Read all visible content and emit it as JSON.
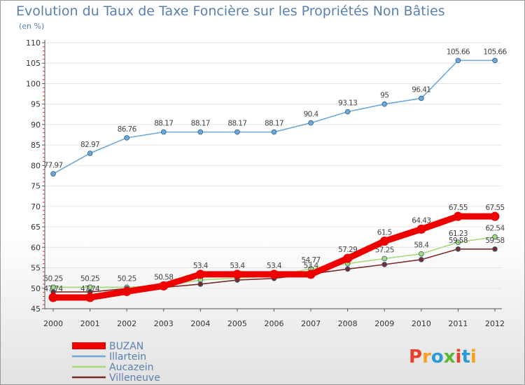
{
  "title": "Evolution du Taux de Taxe Foncière sur les Propriétés Non Bâties",
  "unit": "(en %)",
  "logo": {
    "text": "Proxiti",
    "colors": [
      "#e8402a",
      "#f5a21e",
      "#2b9bd8",
      "#5cb534",
      "#e8402a",
      "#2b9bd8",
      "#f5a21e"
    ]
  },
  "chart_data": {
    "type": "line",
    "title": "Evolution du Taux de Taxe Foncière sur les Propriétés Non Bâties",
    "ylabel": "(en %)",
    "xlabel": "",
    "x": [
      "2000",
      "2001",
      "2002",
      "2003",
      "2004",
      "2005",
      "2006",
      "2007",
      "2008",
      "2009",
      "2010",
      "2011",
      "2012"
    ],
    "ylim": [
      45,
      110
    ],
    "yticks": [
      45,
      50,
      55,
      60,
      65,
      70,
      75,
      80,
      85,
      90,
      95,
      100,
      105,
      110
    ],
    "grid": true,
    "legend": "bottom-left",
    "series": [
      {
        "name": "Illartein",
        "color": "#6fa8d6",
        "values": [
          77.97,
          82.97,
          86.76,
          88.17,
          88.17,
          88.17,
          88.17,
          90.4,
          93.13,
          95,
          96.41,
          105.66,
          105.66
        ],
        "labels": [
          "77.97",
          "82.97",
          "86.76",
          "88.17",
          "88.17",
          "88.17",
          "88.17",
          "90.4",
          "93.13",
          "95",
          "96.41",
          "105.66",
          "105.66"
        ]
      },
      {
        "name": "Aucazein",
        "color": "#a7db7a",
        "values": [
          50.25,
          50.25,
          50.25,
          50.58,
          52,
          52.5,
          53,
          54.77,
          56,
          57.25,
          58.4,
          61.23,
          62.54
        ],
        "labels": [
          "50.25",
          "50.25",
          "50.25",
          "50.58",
          "",
          "",
          "",
          "54.77",
          "",
          "57.25",
          "58.4",
          "61.23",
          "62.54"
        ]
      },
      {
        "name": "Villeneuve",
        "color": "#7b2a2a",
        "values": [
          49.1,
          49.1,
          49.9,
          50.2,
          51,
          52,
          52.4,
          53.5,
          54.7,
          55.8,
          57,
          59.58,
          59.58
        ],
        "labels": [
          "",
          "",
          "",
          "",
          "",
          "",
          "",
          "",
          "",
          "",
          "",
          "59.58",
          "59.58"
        ]
      },
      {
        "name": "BUZAN",
        "color": "#ee0000",
        "values": [
          47.74,
          47.74,
          49.2,
          50.58,
          53.4,
          53.4,
          53.4,
          53.4,
          57.29,
          61.5,
          64.43,
          67.55,
          67.55
        ],
        "labels": [
          "47.74",
          "47.74",
          "",
          "",
          "53.4",
          "53.4",
          "53.4",
          "53.4",
          "57.29",
          "61.5",
          "64.43",
          "67.55",
          "67.55"
        ]
      }
    ]
  }
}
